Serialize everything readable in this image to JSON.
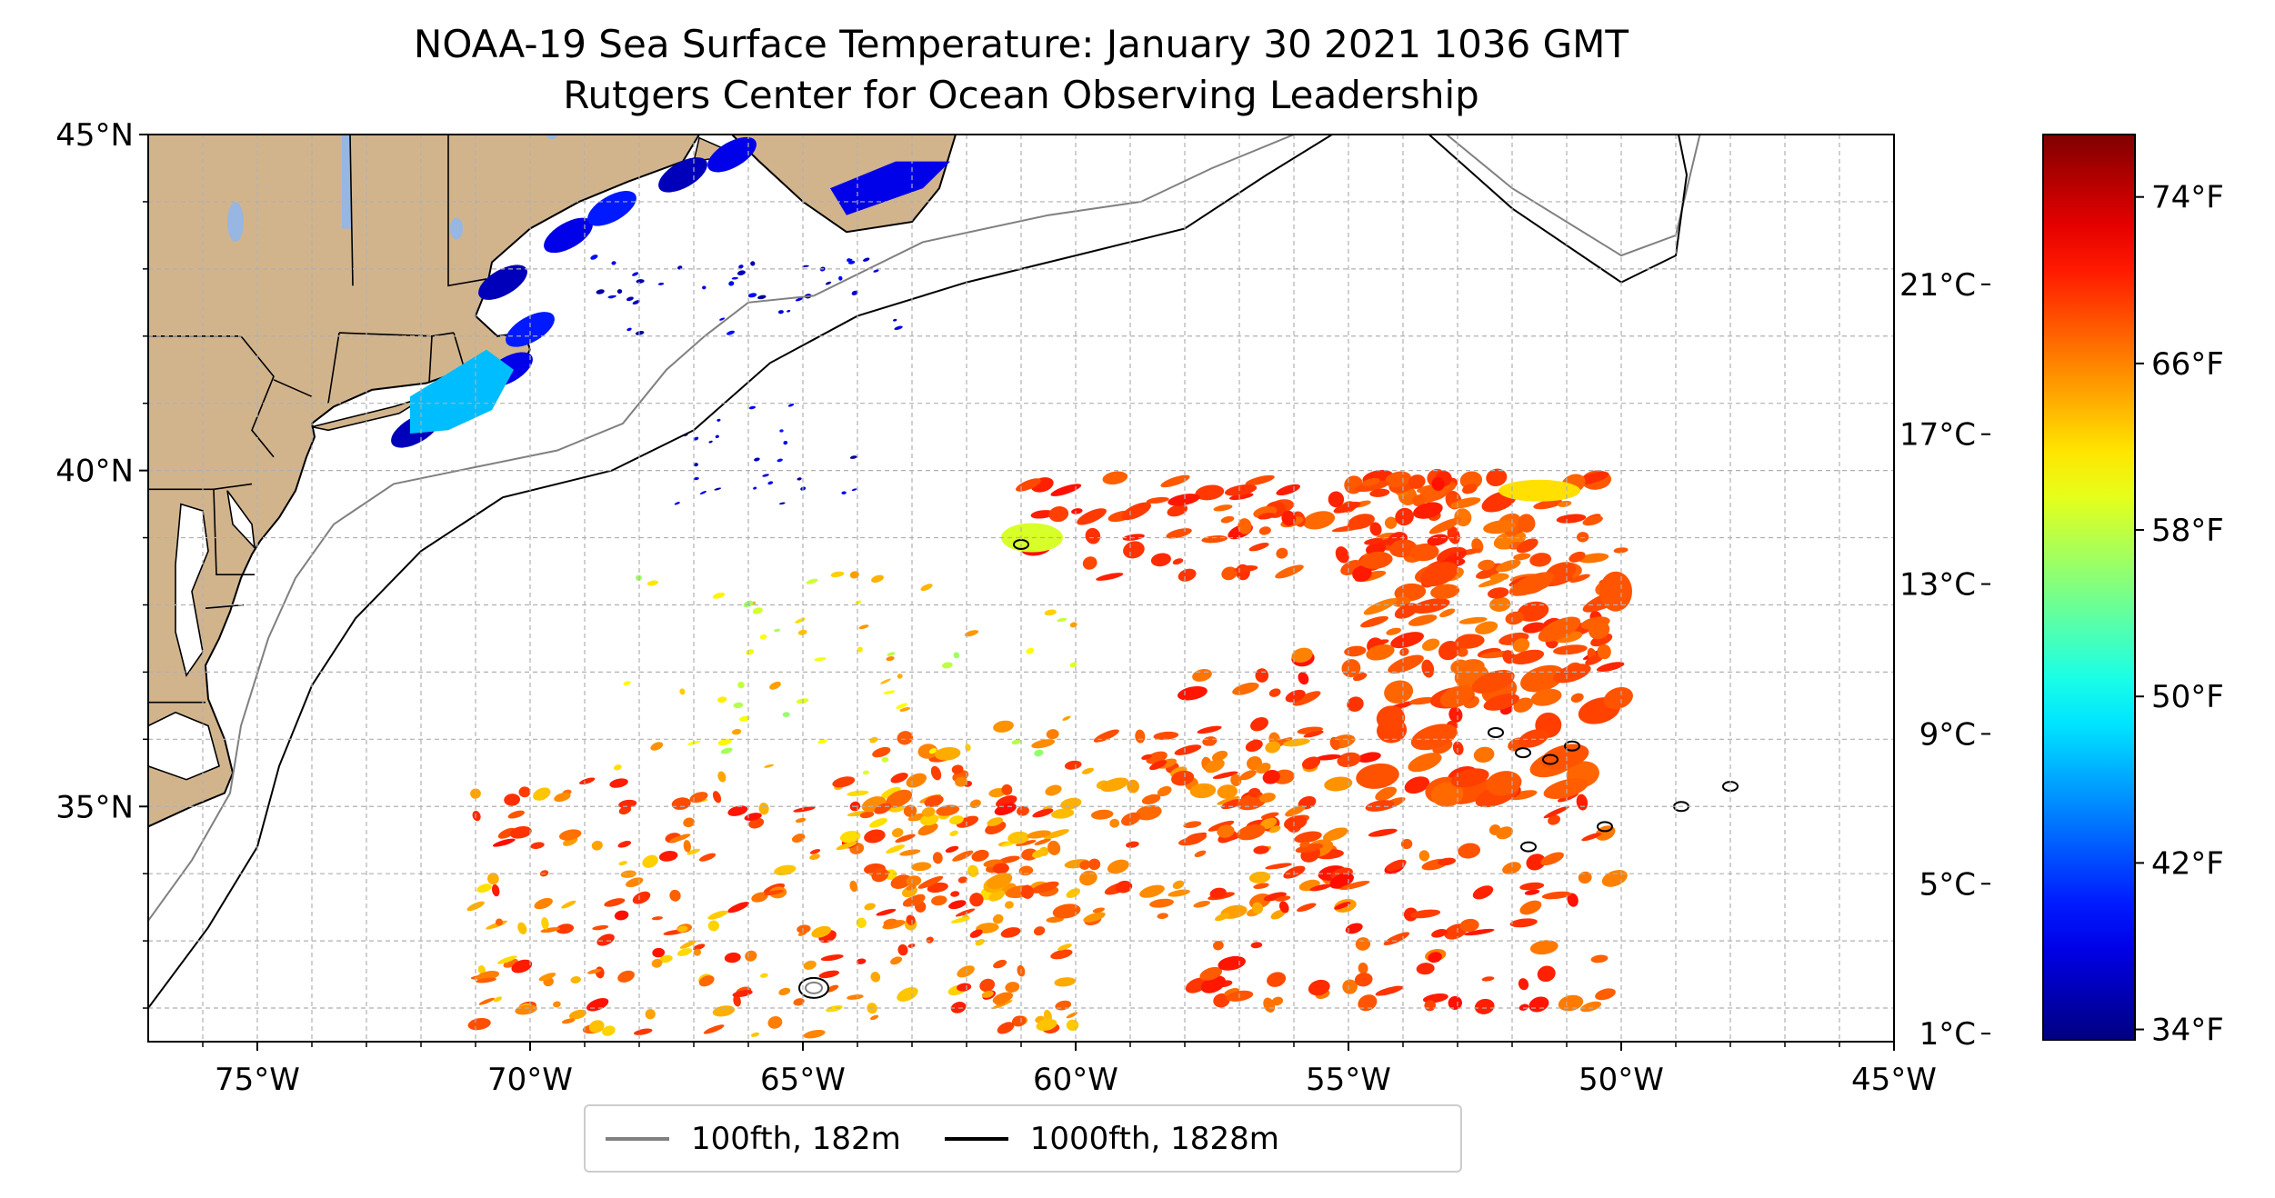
{
  "title_line1": "NOAA-19 Sea Surface Temperature: January 30 2021 1036 GMT",
  "title_line2": "Rutgers Center for Ocean Observing Leadership",
  "map": {
    "lon_range": [
      -77,
      -45
    ],
    "lat_range": [
      31.5,
      45
    ],
    "x_ticks": [
      {
        "value": -75,
        "label": "75°W"
      },
      {
        "value": -70,
        "label": "70°W"
      },
      {
        "value": -65,
        "label": "65°W"
      },
      {
        "value": -60,
        "label": "60°W"
      },
      {
        "value": -55,
        "label": "55°W"
      },
      {
        "value": -50,
        "label": "50°W"
      },
      {
        "value": -45,
        "label": "45°W"
      }
    ],
    "y_ticks": [
      {
        "value": 45,
        "label": "45°N"
      },
      {
        "value": 40,
        "label": "40°N"
      },
      {
        "value": 35,
        "label": "35°N"
      }
    ],
    "grid": true,
    "land_color": "#d2b48c",
    "water_body_color": "#97b6e1",
    "isobath_100fth_color": "#808080",
    "isobath_1000fth_color": "#000000"
  },
  "colorbar": {
    "colormap": "jet",
    "fahrenheit_range": [
      33.5,
      77
    ],
    "fahrenheit_ticks": [
      "34°F",
      "42°F",
      "50°F",
      "58°F",
      "66°F",
      "74°F"
    ],
    "celsius_ticks": [
      "1°C",
      "5°C",
      "9°C",
      "13°C",
      "17°C",
      "21°C"
    ]
  },
  "legend": {
    "items": [
      {
        "label": "100fth, 182m",
        "color": "#808080"
      },
      {
        "label": "1000fth, 1828m",
        "color": "#000000"
      }
    ]
  }
}
